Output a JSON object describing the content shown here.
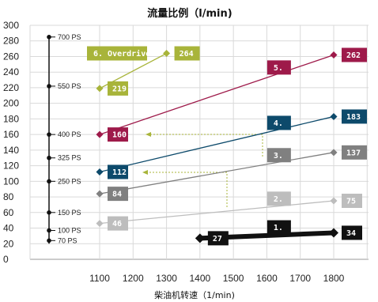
{
  "chart_data": {
    "type": "line",
    "title": "流量比例（l/min)",
    "xlabel": "柴油机转速（1/min)",
    "ylabel": "",
    "xlim": [
      1000,
      1900
    ],
    "ylim": [
      0,
      300
    ],
    "x_ticks": [
      "1100",
      "1200",
      "1300",
      "1400",
      "1500",
      "1600",
      "1700",
      "1800"
    ],
    "y_ticks": [
      "300",
      "280",
      "260",
      "240",
      "220",
      "200",
      "180",
      "160",
      "140",
      "120",
      "100",
      "80",
      "60",
      "40",
      "20",
      "0"
    ],
    "grid": true,
    "ps_scale": [
      {
        "label": "700 PS",
        "y": 285
      },
      {
        "label": "550 PS",
        "y": 222
      },
      {
        "label": "400 PS",
        "y": 160
      },
      {
        "label": "325 PS",
        "y": 130
      },
      {
        "label": "250 PS",
        "y": 100
      },
      {
        "label": "150 PS",
        "y": 60
      },
      {
        "label": "100 PS",
        "y": 37
      },
      {
        "label": "70 PS",
        "y": 24
      }
    ],
    "series": [
      {
        "name": "1.",
        "color": "#111111",
        "points": [
          {
            "x": 1400,
            "y": 27
          },
          {
            "x": 1800,
            "y": 34
          }
        ],
        "start_label": "27",
        "end_label": "34"
      },
      {
        "name": "2.",
        "color": "#bdbdbd",
        "points": [
          {
            "x": 1100,
            "y": 46
          },
          {
            "x": 1800,
            "y": 75
          }
        ],
        "start_label": "46",
        "end_label": "75"
      },
      {
        "name": "3.",
        "color": "#808080",
        "points": [
          {
            "x": 1100,
            "y": 84
          },
          {
            "x": 1800,
            "y": 137
          }
        ],
        "start_label": "84",
        "end_label": "137"
      },
      {
        "name": "4.",
        "color": "#0d4a6b",
        "points": [
          {
            "x": 1100,
            "y": 112
          },
          {
            "x": 1800,
            "y": 183
          }
        ],
        "start_label": "112",
        "end_label": "183"
      },
      {
        "name": "5.",
        "color": "#9e1a4a",
        "points": [
          {
            "x": 1100,
            "y": 160
          },
          {
            "x": 1800,
            "y": 262
          }
        ],
        "start_label": "160",
        "end_label": "262"
      },
      {
        "name": "6. Overdrive",
        "color": "#a8b43a",
        "points": [
          {
            "x": 1100,
            "y": 219
          },
          {
            "x": 1300,
            "y": 264
          }
        ],
        "start_label": "219",
        "end_label": "264"
      }
    ]
  }
}
